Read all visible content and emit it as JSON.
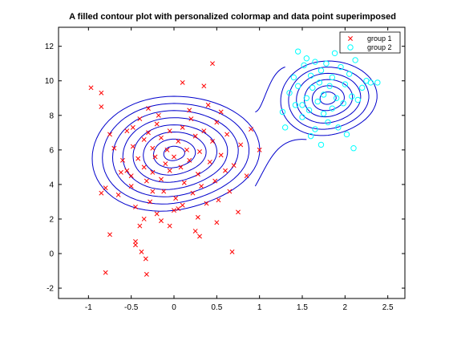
{
  "chart_data": {
    "type": "scatter",
    "title": "A filled contour plot with personalized colormap and data point superimposed",
    "xlabel": "",
    "ylabel": "",
    "xlim": [
      -1.35,
      2.7
    ],
    "ylim": [
      -2.6,
      13.1
    ],
    "xticks": [
      -1,
      -0.5,
      0,
      0.5,
      1,
      1.5,
      2,
      2.5
    ],
    "xtick_labels": [
      "-1",
      "-0.5",
      "0",
      "0.5",
      "1",
      "1.5",
      "2",
      "2.5"
    ],
    "yticks": [
      -2,
      0,
      2,
      4,
      6,
      8,
      10,
      12
    ],
    "ytick_labels": [
      "-2",
      "0",
      "2",
      "4",
      "6",
      "8",
      "10",
      "12"
    ],
    "grid": false,
    "legend_position": "top-right",
    "colors": {
      "group1": "#ff0000",
      "group2": "#00ffff",
      "contour": "#0000cc"
    },
    "contours": {
      "cluster_a": {
        "center": [
          0.0,
          5.8
        ],
        "rx_max": 0.95,
        "ry_max": 3.4,
        "levels": 8
      },
      "cluster_b": {
        "center": [
          1.8,
          9.0
        ],
        "rx_max": 0.55,
        "ry_max": 2.2,
        "levels": 6
      }
    },
    "series": [
      {
        "name": "group 1",
        "marker": "x",
        "points": [
          [
            -0.97,
            9.6
          ],
          [
            -0.85,
            9.3
          ],
          [
            -0.85,
            8.5
          ],
          [
            -0.8,
            3.8
          ],
          [
            -0.85,
            3.5
          ],
          [
            -0.75,
            1.1
          ],
          [
            -0.8,
            -1.1
          ],
          [
            -0.75,
            6.9
          ],
          [
            -0.7,
            6.1
          ],
          [
            -0.62,
            4.7
          ],
          [
            -0.55,
            7.1
          ],
          [
            -0.55,
            4.8
          ],
          [
            -0.5,
            3.9
          ],
          [
            -0.5,
            4.5
          ],
          [
            -0.48,
            6.2
          ],
          [
            -0.48,
            7.3
          ],
          [
            -0.45,
            2.7
          ],
          [
            -0.42,
            5.5
          ],
          [
            -0.4,
            7.8
          ],
          [
            -0.4,
            1.6
          ],
          [
            -0.35,
            6.6
          ],
          [
            -0.35,
            5.0
          ],
          [
            -0.32,
            4.2
          ],
          [
            -0.3,
            8.4
          ],
          [
            -0.3,
            7.0
          ],
          [
            -0.28,
            3.0
          ],
          [
            -0.25,
            6.1
          ],
          [
            -0.25,
            4.7
          ],
          [
            -0.22,
            5.6
          ],
          [
            -0.2,
            7.5
          ],
          [
            -0.18,
            8.0
          ],
          [
            -0.15,
            6.7
          ],
          [
            -0.15,
            4.3
          ],
          [
            -0.12,
            3.6
          ],
          [
            -0.1,
            5.2
          ],
          [
            -0.08,
            6.0
          ],
          [
            -0.05,
            7.1
          ],
          [
            -0.05,
            4.8
          ],
          [
            0.0,
            5.6
          ],
          [
            0.02,
            3.2
          ],
          [
            0.05,
            6.5
          ],
          [
            0.05,
            2.6
          ],
          [
            0.08,
            5.0
          ],
          [
            0.1,
            9.9
          ],
          [
            0.1,
            7.3
          ],
          [
            0.12,
            4.1
          ],
          [
            0.15,
            6.0
          ],
          [
            0.18,
            5.4
          ],
          [
            0.2,
            7.8
          ],
          [
            0.22,
            3.5
          ],
          [
            0.25,
            6.8
          ],
          [
            0.28,
            4.6
          ],
          [
            0.3,
            5.9
          ],
          [
            0.32,
            3.9
          ],
          [
            0.35,
            7.1
          ],
          [
            0.38,
            2.9
          ],
          [
            0.4,
            8.6
          ],
          [
            0.42,
            5.3
          ],
          [
            0.45,
            11.0
          ],
          [
            0.45,
            6.5
          ],
          [
            0.48,
            4.2
          ],
          [
            0.5,
            7.6
          ],
          [
            0.52,
            3.1
          ],
          [
            0.55,
            5.7
          ],
          [
            0.6,
            4.8
          ],
          [
            0.62,
            6.9
          ],
          [
            0.65,
            3.6
          ],
          [
            0.68,
            0.1
          ],
          [
            0.7,
            5.1
          ],
          [
            0.75,
            2.4
          ],
          [
            0.78,
            6.3
          ],
          [
            0.85,
            4.5
          ],
          [
            0.9,
            7.2
          ],
          [
            1.0,
            6.0
          ],
          [
            -0.45,
            0.5
          ],
          [
            -0.45,
            0.7
          ],
          [
            -0.38,
            0.1
          ],
          [
            -0.33,
            -0.3
          ],
          [
            -0.32,
            -1.2
          ],
          [
            -0.65,
            3.4
          ],
          [
            -0.6,
            5.4
          ],
          [
            -0.2,
            2.3
          ],
          [
            -0.15,
            1.9
          ],
          [
            0.25,
            1.3
          ],
          [
            0.28,
            2.1
          ],
          [
            0.1,
            2.8
          ],
          [
            -0.05,
            1.6
          ],
          [
            0.0,
            2.5
          ],
          [
            0.18,
            8.3
          ],
          [
            0.35,
            9.7
          ],
          [
            0.55,
            8.2
          ],
          [
            0.3,
            1.0
          ],
          [
            0.5,
            1.8
          ],
          [
            -0.25,
            3.6
          ],
          [
            -0.35,
            2.0
          ]
        ]
      },
      {
        "name": "group 2",
        "marker": "o",
        "points": [
          [
            1.27,
            8.2
          ],
          [
            1.3,
            7.3
          ],
          [
            1.35,
            9.3
          ],
          [
            1.4,
            10.2
          ],
          [
            1.42,
            8.6
          ],
          [
            1.45,
            11.7
          ],
          [
            1.45,
            9.7
          ],
          [
            1.5,
            7.9
          ],
          [
            1.52,
            10.9
          ],
          [
            1.55,
            9.0
          ],
          [
            1.55,
            11.3
          ],
          [
            1.58,
            8.3
          ],
          [
            1.6,
            10.3
          ],
          [
            1.62,
            9.6
          ],
          [
            1.65,
            7.2
          ],
          [
            1.65,
            11.1
          ],
          [
            1.68,
            8.8
          ],
          [
            1.7,
            9.9
          ],
          [
            1.72,
            6.3
          ],
          [
            1.72,
            10.6
          ],
          [
            1.75,
            8.1
          ],
          [
            1.75,
            9.2
          ],
          [
            1.78,
            11.0
          ],
          [
            1.8,
            7.6
          ],
          [
            1.82,
            9.7
          ],
          [
            1.85,
            10.2
          ],
          [
            1.85,
            8.4
          ],
          [
            1.88,
            11.6
          ],
          [
            1.9,
            9.0
          ],
          [
            1.92,
            7.3
          ],
          [
            1.95,
            10.8
          ],
          [
            1.98,
            8.7
          ],
          [
            2.0,
            9.8
          ],
          [
            2.02,
            6.9
          ],
          [
            2.05,
            10.4
          ],
          [
            2.08,
            9.1
          ],
          [
            2.1,
            6.1
          ],
          [
            2.12,
            11.2
          ],
          [
            2.15,
            8.9
          ],
          [
            2.2,
            9.6
          ],
          [
            2.25,
            10.0
          ],
          [
            2.3,
            9.9
          ],
          [
            2.38,
            9.9
          ],
          [
            1.6,
            6.8
          ],
          [
            1.5,
            8.6
          ]
        ]
      }
    ]
  }
}
